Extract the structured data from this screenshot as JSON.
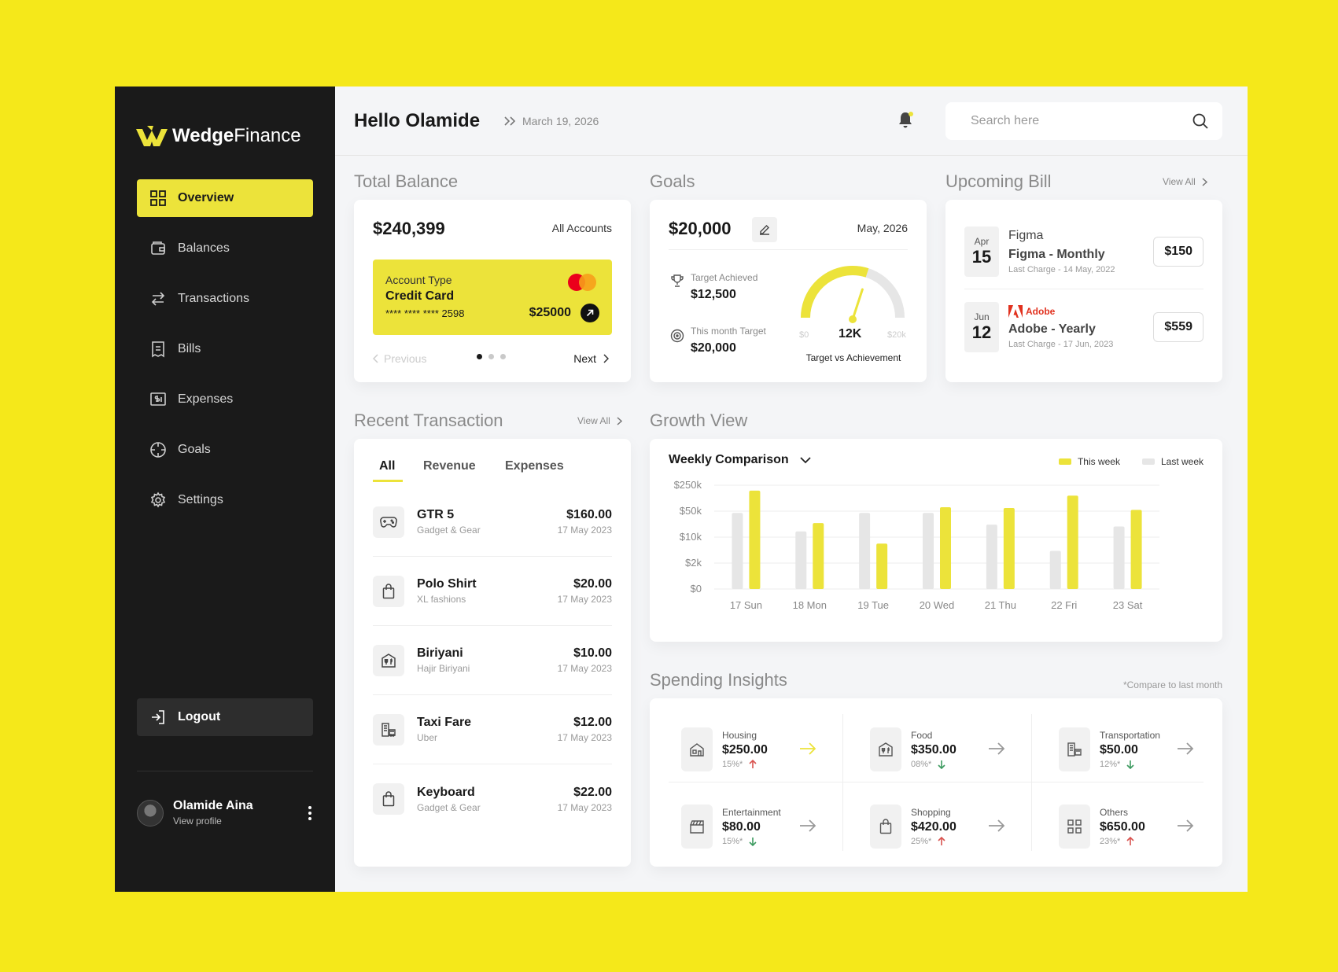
{
  "sidebar": {
    "brand_bold": "Wedge",
    "brand_light": "Finance",
    "items": [
      {
        "label": "Overview",
        "icon": "grid-icon",
        "active": true
      },
      {
        "label": "Balances",
        "icon": "wallet-icon"
      },
      {
        "label": "Transactions",
        "icon": "arrows-swap-icon"
      },
      {
        "label": "Bills",
        "icon": "receipt-icon"
      },
      {
        "label": "Expenses",
        "icon": "dollar-screen-icon"
      },
      {
        "label": "Goals",
        "icon": "crosshair-icon"
      },
      {
        "label": "Settings",
        "icon": "gear-icon"
      }
    ],
    "logout_label": "Logout",
    "profile": {
      "name": "Olamide Aina",
      "sub": "View profile"
    }
  },
  "header": {
    "greeting": "Hello Olamide",
    "date": "March 19, 2026",
    "search_placeholder": "Search here"
  },
  "balance": {
    "title": "Total Balance",
    "amount": "$240,399",
    "accounts_label": "All Accounts",
    "card": {
      "type_label": "Account Type",
      "type": "Credit Card",
      "number": "**** **** **** 2598",
      "amount": "$25000"
    },
    "prev_label": "Previous",
    "next_label": "Next"
  },
  "goals": {
    "title": "Goals",
    "amount": "$20,000",
    "month": "May, 2026",
    "achieved_label": "Target Achieved",
    "achieved_value": "$12,500",
    "target_label": "This month Target",
    "target_value": "$20,000",
    "gauge_min": "$0",
    "gauge_max": "$20k",
    "gauge_value": "12K",
    "gauge_fraction": 0.6,
    "gauge_caption": "Target vs Achievement"
  },
  "bills": {
    "title": "Upcoming Bill",
    "view_all": "View All",
    "items": [
      {
        "month": "Apr",
        "day": "15",
        "brand": "Figma",
        "name": "Figma - Monthly",
        "last": "Last Charge - 14 May, 2022",
        "amount": "$150"
      },
      {
        "month": "Jun",
        "day": "12",
        "brand": "Adobe",
        "name": "Adobe - Yearly",
        "last": "Last Charge - 17 Jun, 2023",
        "amount": "$559"
      }
    ]
  },
  "transactions": {
    "title": "Recent Transaction",
    "view_all": "View All",
    "tabs": [
      "All",
      "Revenue",
      "Expenses"
    ],
    "items": [
      {
        "name": "GTR 5",
        "sub": "Gadget & Gear",
        "amount": "$160.00",
        "date": "17 May 2023",
        "icon": "gamepad-icon"
      },
      {
        "name": "Polo Shirt",
        "sub": "XL fashions",
        "amount": "$20.00",
        "date": "17 May 2023",
        "icon": "shopping-bag-icon"
      },
      {
        "name": "Biriyani",
        "sub": "Hajir Biriyani",
        "amount": "$10.00",
        "date": "17 May 2023",
        "icon": "restaurant-icon"
      },
      {
        "name": "Taxi Fare",
        "sub": "Uber",
        "amount": "$12.00",
        "date": "17 May 2023",
        "icon": "taxi-icon"
      },
      {
        "name": "Keyboard",
        "sub": "Gadget & Gear",
        "amount": "$22.00",
        "date": "17 May 2023",
        "icon": "shopping-bag-icon"
      }
    ]
  },
  "growth": {
    "title": "Growth View",
    "selector": "Weekly Comparison",
    "legend_this": "This week",
    "legend_last": "Last week"
  },
  "chart_data": {
    "type": "bar",
    "categories": [
      "17 Sun",
      "18 Mon",
      "19 Tue",
      "20 Wed",
      "21 Thu",
      "22 Fri",
      "23 Sat"
    ],
    "y_ticks": [
      "$250k",
      "$50k",
      "$10k",
      "$2k",
      "$0"
    ],
    "y_scale": "log",
    "ylim": [
      0,
      4
    ],
    "series": [
      {
        "name": "Last week",
        "color": "#E6E6E6",
        "values": [
          2.93,
          2.22,
          2.93,
          2.93,
          2.48,
          1.47,
          2.41
        ]
      },
      {
        "name": "This week",
        "color": "#ECE33A",
        "values": [
          3.79,
          2.54,
          1.75,
          3.15,
          3.12,
          3.6,
          3.05
        ]
      }
    ],
    "grid": true,
    "legend": "top-right"
  },
  "insights": {
    "title": "Spending Insights",
    "note": "*Compare to last month",
    "items": [
      {
        "label": "Housing",
        "amount": "$250.00",
        "pct": "15%*",
        "trend": "up",
        "icon": "house-icon"
      },
      {
        "label": "Food",
        "amount": "$350.00",
        "pct": "08%*",
        "trend": "down",
        "icon": "restaurant-icon"
      },
      {
        "label": "Transportation",
        "amount": "$50.00",
        "pct": "12%*",
        "trend": "down",
        "icon": "taxi-icon"
      },
      {
        "label": "Entertainment",
        "amount": "$80.00",
        "pct": "15%*",
        "trend": "down",
        "icon": "clapperboard-icon"
      },
      {
        "label": "Shopping",
        "amount": "$420.00",
        "pct": "25%*",
        "trend": "up",
        "icon": "shopping-bag-icon"
      },
      {
        "label": "Others",
        "amount": "$650.00",
        "pct": "23%*",
        "trend": "up",
        "icon": "grid-icon"
      }
    ]
  },
  "colors": {
    "accent": "#ECE33A",
    "sidebar": "#1A1A1A",
    "background": "#F5E81A",
    "up": "#D9534F",
    "down": "#3C9A5F"
  }
}
